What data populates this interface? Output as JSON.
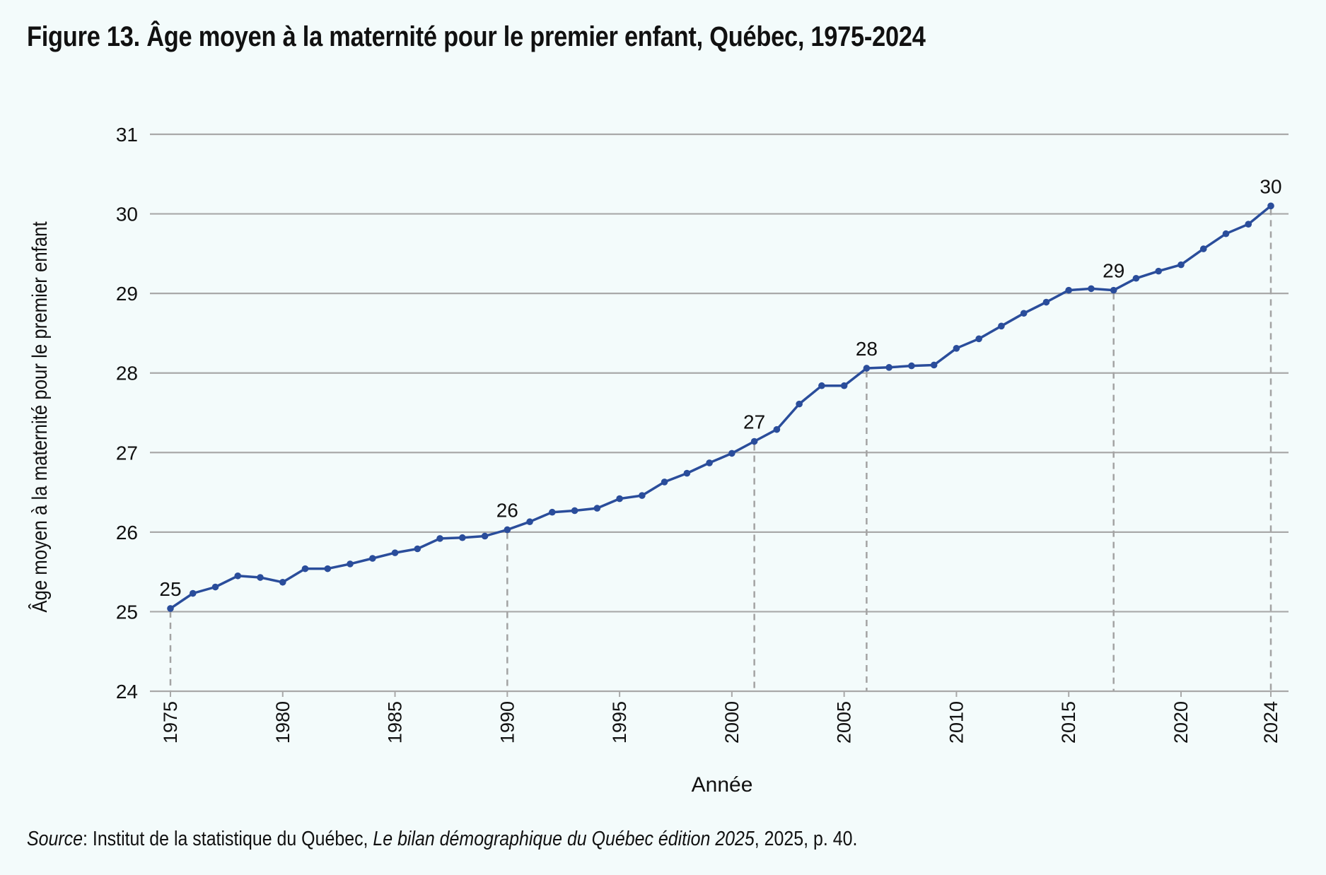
{
  "page": {
    "title": "Figure 13. Âge moyen à la maternité pour le premier enfant, Québec, 1975-2024",
    "source": {
      "label": "Source",
      "text1": ": Institut de la statistique du Québec, ",
      "publication": "Le bilan démographique du Québec édition 2025",
      "text2": ", 2025, p. 40."
    }
  },
  "colors": {
    "line": "#2a4d9b",
    "grid": "#a9a9a9",
    "dashed": "#a3a3a3",
    "background": "#f3fbfb"
  },
  "chart_data": {
    "type": "line",
    "xlabel": "Année",
    "ylabel": "Âge moyen à la maternité pour le premier enfant",
    "ylim": [
      24,
      31
    ],
    "yticks": [
      24,
      25,
      26,
      27,
      28,
      29,
      30,
      31
    ],
    "xlim": [
      1975,
      2024
    ],
    "xticks": [
      1975,
      1980,
      1985,
      1990,
      1995,
      2000,
      2005,
      2010,
      2015,
      2020,
      2024
    ],
    "grid": true,
    "series": [
      {
        "x": [
          1975,
          1976,
          1977,
          1978,
          1979,
          1980,
          1981,
          1982,
          1983,
          1984,
          1985,
          1986,
          1987,
          1988,
          1989,
          1990,
          1991,
          1992,
          1993,
          1994,
          1995,
          1996,
          1997,
          1998,
          1999,
          2000,
          2001,
          2002,
          2003,
          2004,
          2005,
          2006,
          2007,
          2008,
          2009,
          2010,
          2011,
          2012,
          2013,
          2014,
          2015,
          2016,
          2017,
          2018,
          2019,
          2020,
          2021,
          2022,
          2023,
          2024
        ],
        "values": [
          25.04,
          25.23,
          25.31,
          25.45,
          25.43,
          25.37,
          25.54,
          25.54,
          25.6,
          25.67,
          25.74,
          25.79,
          25.92,
          25.93,
          25.95,
          26.03,
          26.13,
          26.25,
          26.27,
          26.3,
          26.42,
          26.46,
          26.63,
          26.74,
          26.87,
          26.99,
          27.14,
          27.29,
          27.61,
          27.84,
          27.84,
          28.06,
          28.07,
          28.09,
          28.1,
          28.31,
          28.43,
          28.59,
          28.75,
          28.89,
          29.04,
          29.06,
          29.04,
          29.19,
          29.28,
          29.36,
          29.56,
          29.75,
          29.87,
          30.1
        ]
      }
    ],
    "annotations": [
      {
        "x": 1975,
        "y": 25.04,
        "label": "25"
      },
      {
        "x": 1990,
        "y": 26.03,
        "label": "26"
      },
      {
        "x": 2001,
        "y": 27.14,
        "label": "27"
      },
      {
        "x": 2006,
        "y": 28.06,
        "label": "28"
      },
      {
        "x": 2017,
        "y": 29.04,
        "label": "29"
      },
      {
        "x": 2024,
        "y": 30.1,
        "label": "30"
      }
    ]
  }
}
